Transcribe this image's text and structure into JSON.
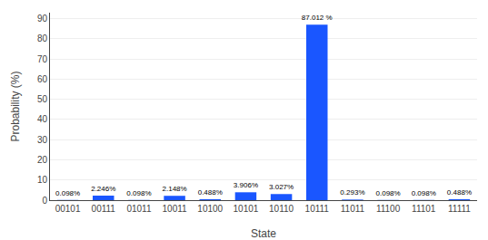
{
  "chart_data": {
    "type": "bar",
    "categories": [
      "00101",
      "00111",
      "01011",
      "10011",
      "10100",
      "10101",
      "10110",
      "10111",
      "11011",
      "11100",
      "11101",
      "11111"
    ],
    "values": [
      0.098,
      2.246,
      0.098,
      2.148,
      0.488,
      3.906,
      3.027,
      87.012,
      0.293,
      0.098,
      0.098,
      0.488
    ],
    "value_labels": [
      "0.098%",
      "2.246%",
      "0.098%",
      "2.148%",
      "0.488%",
      "3.906%",
      "3.027%",
      "87.012 %",
      "0.293%",
      "0.098%",
      "0.098%",
      "0.488%"
    ],
    "data_labels": true,
    "color": "#1a56ff",
    "x_label": "State",
    "y_label": "Probability (%)",
    "ylim": [
      0,
      93
    ],
    "yticks": [
      0,
      10,
      20,
      30,
      40,
      50,
      60,
      70,
      80,
      90
    ],
    "grid": true
  }
}
